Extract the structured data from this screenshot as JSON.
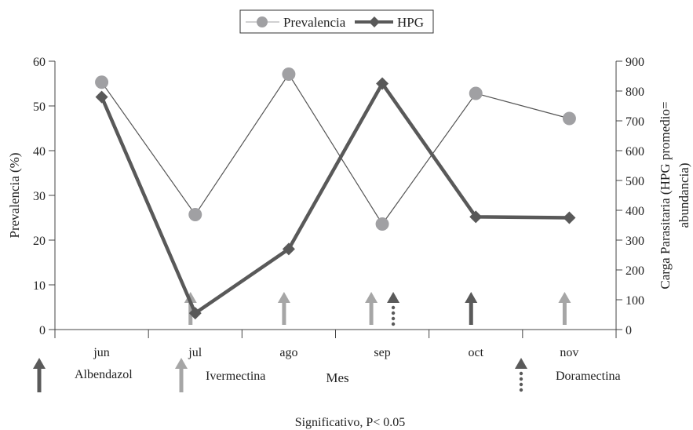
{
  "chart_data": {
    "type": "line",
    "categories": [
      "jun",
      "jul",
      "ago",
      "sep",
      "oct",
      "nov"
    ],
    "series": [
      {
        "name": "Prevalencia",
        "axis": "left",
        "values": [
          55.3,
          25.7,
          57.1,
          23.6,
          52.8,
          47.2
        ],
        "color": "#a0a0a3",
        "marker": "circle"
      },
      {
        "name": "HPG",
        "axis": "right",
        "values": [
          780,
          55,
          270,
          825,
          378,
          375
        ],
        "color": "#595959",
        "marker": "diamond"
      }
    ],
    "xlabel": "Mes",
    "ylabel": "Prevalencia (%)",
    "y2label_line1": "Carga Parasitaria (HPG promedio=",
    "y2label_line2": "abundancia)",
    "ylim": [
      0,
      60
    ],
    "yticks": [
      "0",
      "10",
      "20",
      "30",
      "40",
      "50",
      "60"
    ],
    "y2lim": [
      0,
      900
    ],
    "y2ticks": [
      "0",
      "100",
      "200",
      "300",
      "400",
      "500",
      "600",
      "700",
      "800",
      "900"
    ],
    "legend_position": "top-center",
    "grid": false,
    "treatments": [
      {
        "name": "Albendazol",
        "color": "#5a5a5a",
        "style": "solid"
      },
      {
        "name": "Ivermectina",
        "color": "#a6a6a6",
        "style": "solid"
      },
      {
        "name": "Doramectina",
        "color": "#5a5a5a",
        "style": "dotted"
      }
    ],
    "treatment_markers": [
      {
        "month_index": 1,
        "treatment": "Ivermectina"
      },
      {
        "month_index": 2,
        "treatment": "Ivermectina"
      },
      {
        "month_index": 3,
        "treatment": "Ivermectina"
      },
      {
        "month_index": 3,
        "treatment": "Doramectina"
      },
      {
        "month_index": 4,
        "treatment": "Albendazol"
      },
      {
        "month_index": 5,
        "treatment": "Ivermectina"
      }
    ],
    "footnote": "Significativo, P< 0.05"
  }
}
